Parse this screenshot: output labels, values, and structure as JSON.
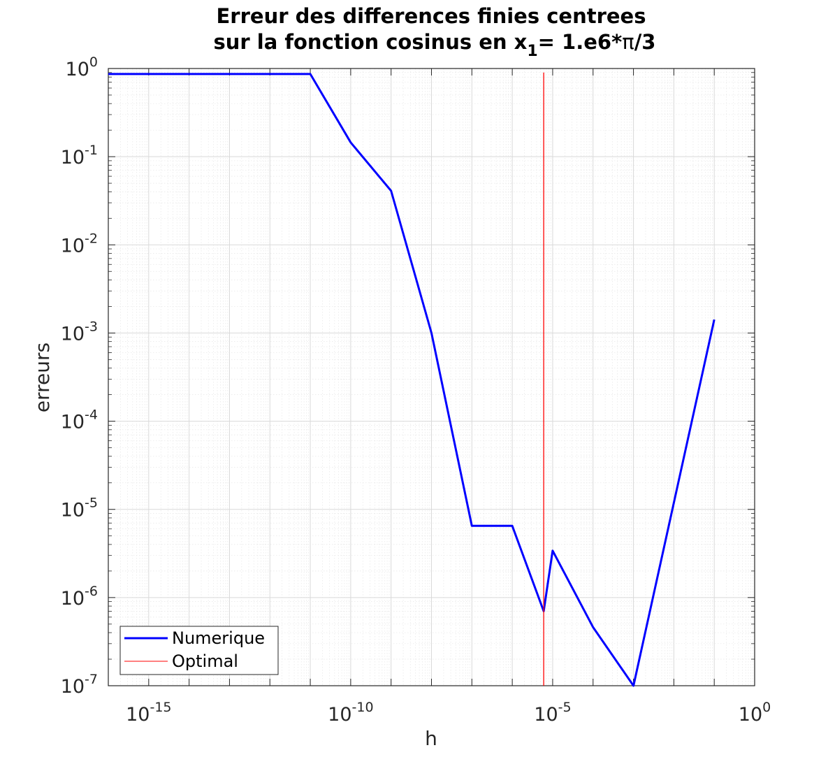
{
  "chart_data": {
    "type": "line",
    "title": {
      "line1": "Erreur des differences finies centrees",
      "line2_prefix": "sur la fonction cosinus en x",
      "line2_sub": "1",
      "line2_mid": "= 1.e6*",
      "line2_pi": "π",
      "line2_suffix": "/3"
    },
    "xlabel": "h",
    "ylabel": "erreurs",
    "xscale": "log",
    "yscale": "log",
    "xlim": [
      1e-16,
      1
    ],
    "ylim": [
      1e-07,
      1
    ],
    "grid": true,
    "minor_grid": true,
    "legend_position": "bottom-left",
    "x_ticks": [
      {
        "value": 1e-15,
        "base": "10",
        "exp": "-15"
      },
      {
        "value": 1e-10,
        "base": "10",
        "exp": "-10"
      },
      {
        "value": 1e-05,
        "base": "10",
        "exp": "-5"
      },
      {
        "value": 1,
        "base": "10",
        "exp": "0"
      }
    ],
    "y_ticks": [
      {
        "value": 1e-07,
        "base": "10",
        "exp": "-7"
      },
      {
        "value": 1e-06,
        "base": "10",
        "exp": "-6"
      },
      {
        "value": 1e-05,
        "base": "10",
        "exp": "-5"
      },
      {
        "value": 0.0001,
        "base": "10",
        "exp": "-4"
      },
      {
        "value": 0.001,
        "base": "10",
        "exp": "-3"
      },
      {
        "value": 0.01,
        "base": "10",
        "exp": "-2"
      },
      {
        "value": 0.1,
        "base": "10",
        "exp": "-1"
      },
      {
        "value": 1,
        "base": "10",
        "exp": "0"
      }
    ],
    "series": [
      {
        "name": "Numerique",
        "color": "#0000ff",
        "points": [
          {
            "x": 1e-16,
            "y": 0.866
          },
          {
            "x": 1e-15,
            "y": 0.866
          },
          {
            "x": 1e-14,
            "y": 0.866
          },
          {
            "x": 1e-13,
            "y": 0.866
          },
          {
            "x": 1e-12,
            "y": 0.866
          },
          {
            "x": 1e-11,
            "y": 0.866
          },
          {
            "x": 1e-10,
            "y": 0.145
          },
          {
            "x": 1e-09,
            "y": 0.041
          },
          {
            "x": 1e-08,
            "y": 0.001
          },
          {
            "x": 1e-07,
            "y": 6.5e-06
          },
          {
            "x": 1e-06,
            "y": 6.5e-06
          },
          {
            "x": 6e-06,
            "y": 7e-07
          },
          {
            "x": 1e-05,
            "y": 3.4e-06
          },
          {
            "x": 0.0001,
            "y": 4.6e-07
          },
          {
            "x": 0.001,
            "y": 1e-07
          },
          {
            "x": 0.1,
            "y": 0.00142
          }
        ]
      },
      {
        "name": "Optimal",
        "color": "#ff0000",
        "vertical_x": 6e-06,
        "y_range": [
          1e-07,
          0.9
        ]
      }
    ]
  }
}
